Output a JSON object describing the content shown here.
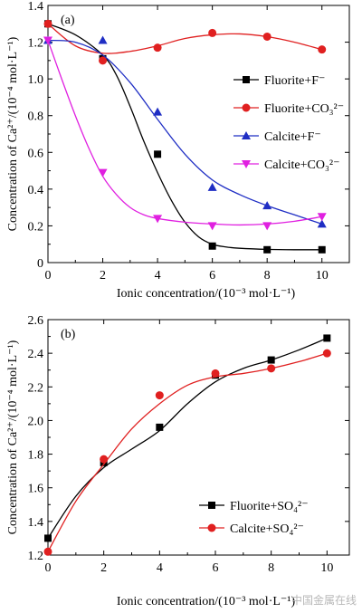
{
  "watermark": "中国金属在线",
  "chart_data": [
    {
      "type": "line",
      "panel_label": "(a)",
      "xlabel": "Ionic concentration/(10⁻³ mol·L⁻¹)",
      "ylabel": "Concentration of Ca²⁺/(10⁻⁴ mol·L⁻¹)",
      "xlim": [
        0,
        11
      ],
      "ylim": [
        0,
        1.4
      ],
      "xticks": [
        0,
        2,
        4,
        6,
        8,
        10
      ],
      "xtick_labels": [
        "0",
        "2",
        "4",
        "6",
        "8",
        "10"
      ],
      "yticks": [
        0,
        0.2,
        0.4,
        0.6,
        0.8,
        1.0,
        1.2,
        1.4
      ],
      "ytick_labels": [
        "0",
        "0.2",
        "0.4",
        "0.6",
        "0.8",
        "1.0",
        "1.2",
        "1.4"
      ],
      "grid": false,
      "legend_position": "right",
      "series": [
        {
          "name": "Fluorite+F⁻",
          "color": "#000000",
          "marker": "square",
          "x": [
            0,
            2,
            4,
            6,
            8,
            10
          ],
          "y": [
            1.3,
            1.11,
            0.59,
            0.09,
            0.07,
            0.07
          ],
          "curve_x": [
            0,
            1,
            2,
            2.5,
            3,
            3.5,
            4,
            4.5,
            5,
            5.5,
            6,
            6.5,
            7,
            8,
            9,
            10
          ],
          "curve_y": [
            1.3,
            1.24,
            1.13,
            1.02,
            0.85,
            0.66,
            0.49,
            0.34,
            0.22,
            0.14,
            0.1,
            0.085,
            0.078,
            0.072,
            0.07,
            0.07
          ]
        },
        {
          "name": "Fluorite+CO₃²⁻",
          "color": "#e02020",
          "marker": "circle",
          "x": [
            0,
            2,
            4,
            6,
            8,
            10
          ],
          "y": [
            1.3,
            1.1,
            1.17,
            1.25,
            1.23,
            1.16
          ],
          "curve_x": [
            0,
            1,
            2,
            3,
            4,
            5,
            6,
            7,
            8,
            9,
            10
          ],
          "curve_y": [
            1.3,
            1.18,
            1.14,
            1.15,
            1.18,
            1.22,
            1.24,
            1.245,
            1.23,
            1.2,
            1.16
          ]
        },
        {
          "name": "Calcite+F⁻",
          "color": "#1f2ec4",
          "marker": "triangle",
          "x": [
            0,
            2,
            4,
            6,
            8,
            10
          ],
          "y": [
            1.21,
            1.21,
            0.82,
            0.41,
            0.31,
            0.21
          ],
          "curve_x": [
            0,
            1,
            2,
            3,
            4,
            5,
            6,
            7,
            8,
            9,
            10
          ],
          "curve_y": [
            1.21,
            1.2,
            1.13,
            0.98,
            0.78,
            0.59,
            0.45,
            0.37,
            0.31,
            0.26,
            0.21
          ]
        },
        {
          "name": "Calcite+CO₃²⁻",
          "color": "#e020e0",
          "marker": "triangle-down",
          "x": [
            0,
            2,
            4,
            6,
            8,
            10
          ],
          "y": [
            1.21,
            0.49,
            0.24,
            0.2,
            0.2,
            0.25
          ],
          "curve_x": [
            0,
            0.5,
            1,
            1.5,
            2,
            2.5,
            3,
            3.5,
            4,
            5,
            6,
            7,
            8,
            9,
            10
          ],
          "curve_y": [
            1.21,
            1.0,
            0.8,
            0.62,
            0.47,
            0.37,
            0.3,
            0.26,
            0.24,
            0.22,
            0.21,
            0.205,
            0.21,
            0.225,
            0.25
          ]
        }
      ]
    },
    {
      "type": "line",
      "panel_label": "(b)",
      "xlabel": "Ionic concentration/(10⁻³ mol·L⁻¹)",
      "ylabel": "Concentration of Ca²⁺/(10⁻⁴ mol·L⁻¹)",
      "xlim": [
        0,
        10.8
      ],
      "ylim": [
        1.2,
        2.6
      ],
      "xticks": [
        0,
        2,
        4,
        6,
        8,
        10
      ],
      "xtick_labels": [
        "0",
        "2",
        "4",
        "6",
        "8",
        "10"
      ],
      "yticks": [
        1.2,
        1.4,
        1.6,
        1.8,
        2.0,
        2.2,
        2.4,
        2.6
      ],
      "ytick_labels": [
        "1.2",
        "1.4",
        "1.6",
        "1.8",
        "2.0",
        "2.2",
        "2.4",
        "2.6"
      ],
      "grid": false,
      "legend_position": "bottom-right",
      "series": [
        {
          "name": "Fluorite+SO₄²⁻",
          "color": "#000000",
          "marker": "square",
          "x": [
            0,
            2,
            4,
            6,
            8,
            10
          ],
          "y": [
            1.3,
            1.75,
            1.96,
            2.27,
            2.36,
            2.49
          ],
          "curve_x": [
            0,
            1,
            2,
            3,
            4,
            5,
            6,
            7,
            8,
            9,
            10
          ],
          "curve_y": [
            1.3,
            1.55,
            1.72,
            1.83,
            1.94,
            2.1,
            2.23,
            2.31,
            2.36,
            2.42,
            2.49
          ]
        },
        {
          "name": "Calcite+SO₄²⁻",
          "color": "#e02020",
          "marker": "circle",
          "x": [
            0,
            2,
            4,
            6,
            8,
            10
          ],
          "y": [
            1.22,
            1.77,
            2.15,
            2.28,
            2.31,
            2.4
          ],
          "curve_x": [
            0,
            1,
            2,
            3,
            4,
            5,
            6,
            7,
            8,
            9,
            10
          ],
          "curve_y": [
            1.22,
            1.52,
            1.74,
            1.95,
            2.1,
            2.21,
            2.26,
            2.28,
            2.31,
            2.35,
            2.4
          ]
        }
      ]
    }
  ]
}
